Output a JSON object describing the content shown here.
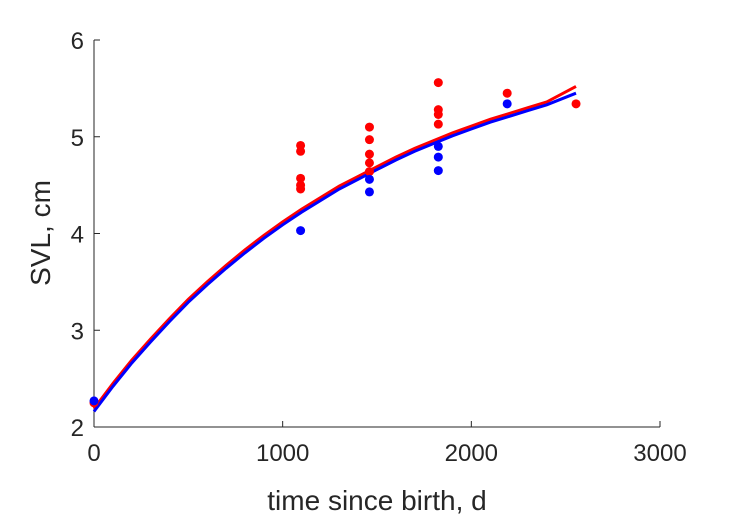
{
  "chart_data": {
    "type": "scatter",
    "title": "",
    "xlabel": "time since birth, d",
    "ylabel": "SVL, cm",
    "xlim": [
      0,
      3000
    ],
    "ylim": [
      2,
      6
    ],
    "xticks": [
      0,
      1000,
      2000,
      3000
    ],
    "yticks": [
      2,
      3,
      4,
      5,
      6
    ],
    "grid": false,
    "legend": "none",
    "series": [
      {
        "kind": "points",
        "color": "#ff0000",
        "points": [
          [
            0,
            2.25
          ],
          [
            1095,
            4.91
          ],
          [
            1095,
            4.85
          ],
          [
            1095,
            4.57
          ],
          [
            1095,
            4.5
          ],
          [
            1095,
            4.46
          ],
          [
            1460,
            5.1
          ],
          [
            1460,
            4.97
          ],
          [
            1460,
            4.82
          ],
          [
            1460,
            4.73
          ],
          [
            1460,
            4.64
          ],
          [
            1825,
            5.56
          ],
          [
            1825,
            5.28
          ],
          [
            1825,
            5.23
          ],
          [
            1825,
            5.13
          ],
          [
            2190,
            5.45
          ],
          [
            2555,
            5.34
          ]
        ]
      },
      {
        "kind": "points",
        "color": "#0000ff",
        "points": [
          [
            0,
            2.27
          ],
          [
            1095,
            4.03
          ],
          [
            1460,
            4.56
          ],
          [
            1460,
            4.43
          ],
          [
            1825,
            4.9
          ],
          [
            1825,
            4.79
          ],
          [
            1825,
            4.65
          ],
          [
            2190,
            5.34
          ]
        ]
      },
      {
        "kind": "line",
        "color": "#ff0000",
        "x": [
          0,
          100,
          200,
          300,
          400,
          500,
          600,
          700,
          800,
          900,
          1000,
          1100,
          1200,
          1300,
          1400,
          1500,
          1600,
          1700,
          1800,
          1900,
          2000,
          2100,
          2200,
          2300,
          2400,
          2555
        ],
        "y": [
          2.19,
          2.45,
          2.69,
          2.91,
          3.12,
          3.32,
          3.5,
          3.67,
          3.83,
          3.98,
          4.12,
          4.25,
          4.37,
          4.49,
          4.59,
          4.69,
          4.79,
          4.88,
          4.96,
          5.04,
          5.11,
          5.18,
          5.24,
          5.3,
          5.36,
          5.52
        ]
      },
      {
        "kind": "line",
        "color": "#0000ff",
        "x": [
          0,
          100,
          200,
          300,
          400,
          500,
          600,
          700,
          800,
          900,
          1000,
          1100,
          1200,
          1300,
          1400,
          1500,
          1600,
          1700,
          1800,
          1900,
          2000,
          2100,
          2200,
          2300,
          2400,
          2555
        ],
        "y": [
          2.16,
          2.42,
          2.66,
          2.88,
          3.09,
          3.29,
          3.47,
          3.64,
          3.8,
          3.95,
          4.09,
          4.22,
          4.34,
          4.46,
          4.56,
          4.66,
          4.76,
          4.85,
          4.93,
          5.01,
          5.08,
          5.15,
          5.21,
          5.27,
          5.33,
          5.45
        ]
      }
    ]
  }
}
